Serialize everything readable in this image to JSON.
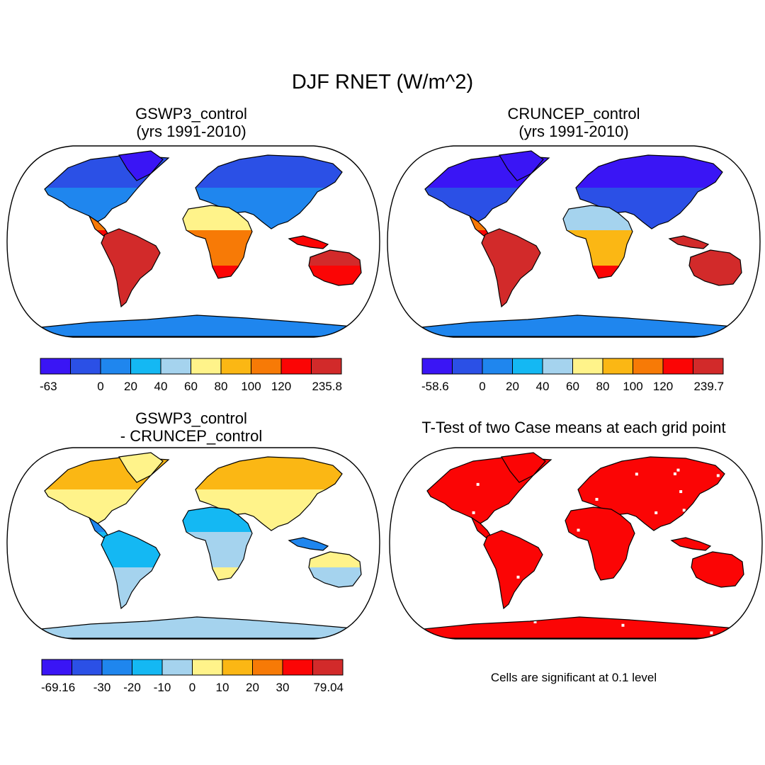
{
  "title": "DJF RNET (W/m^2)",
  "palette": [
    "#3a15f5",
    "#2b50e6",
    "#1f86ee",
    "#14b8f3",
    "#a5d3ee",
    "#fff38a",
    "#fbb714",
    "#f77a06",
    "#fb0505",
    "#d22a2a"
  ],
  "land_color": "#ffffff",
  "coast_color": "#000000",
  "panels": {
    "top_left": {
      "title_line1": "GSWP3_control",
      "title_line2": "(yrs 1991-2010)",
      "colorbar_labels": [
        "-63",
        "0",
        "20",
        "40",
        "60",
        "80",
        "100",
        "120",
        "235.8"
      ]
    },
    "top_right": {
      "title_line1": "CRUNCEP_control",
      "title_line2": "(yrs 1991-2010)",
      "colorbar_labels": [
        "-58.6",
        "0",
        "20",
        "40",
        "60",
        "80",
        "100",
        "120",
        "239.7"
      ]
    },
    "bottom_left": {
      "title_line1": "GSWP3_control",
      "title_line2": "- CRUNCEP_control",
      "colorbar_labels": [
        "-69.16",
        "-30",
        "-20",
        "-10",
        "0",
        "10",
        "20",
        "30",
        "79.04"
      ]
    },
    "bottom_right": {
      "title_line1": "T-Test of two Case means at each grid point",
      "note": "Cells are significant at 0.1 level"
    }
  }
}
